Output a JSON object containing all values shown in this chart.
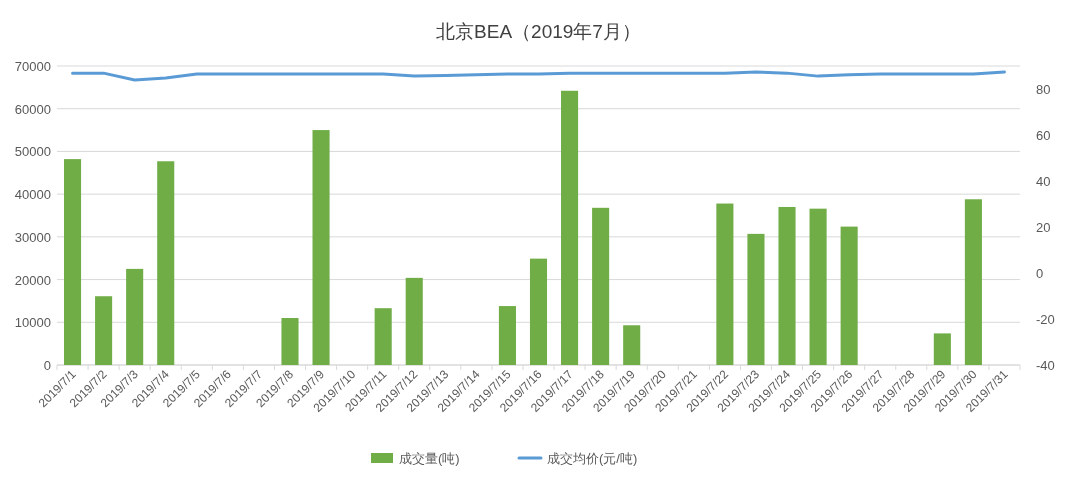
{
  "chart_data": {
    "type": "bar",
    "title": "北京BEA（2019年7月）",
    "categories": [
      "2019/7/1",
      "2019/7/2",
      "2019/7/3",
      "2019/7/4",
      "2019/7/5",
      "2019/7/6",
      "2019/7/7",
      "2019/7/8",
      "2019/7/9",
      "2019/7/10",
      "2019/7/11",
      "2019/7/12",
      "2019/7/13",
      "2019/7/14",
      "2019/7/15",
      "2019/7/16",
      "2019/7/17",
      "2019/7/18",
      "2019/7/19",
      "2019/7/20",
      "2019/7/21",
      "2019/7/22",
      "2019/7/23",
      "2019/7/24",
      "2019/7/25",
      "2019/7/26",
      "2019/7/27",
      "2019/7/28",
      "2019/7/29",
      "2019/7/30",
      "2019/7/31"
    ],
    "series": [
      {
        "name": "成交量(吨)",
        "color": "#70ad47",
        "values": [
          48200,
          16100,
          22500,
          47700,
          0,
          0,
          0,
          11000,
          55000,
          0,
          13300,
          20400,
          0,
          0,
          13800,
          24900,
          64200,
          36800,
          9300,
          0,
          0,
          37800,
          30700,
          37000,
          36600,
          32400,
          0,
          0,
          7400,
          38800,
          0
        ]
      },
      {
        "name": "成交均价(元/吨)",
        "type": "line",
        "axis": "y2",
        "color": "#5b9bd5",
        "values": [
          86.9,
          86.9,
          83.9,
          84.8,
          86.5,
          86.5,
          86.5,
          86.5,
          86.5,
          86.5,
          86.5,
          85.6,
          85.9,
          86.2,
          86.5,
          86.5,
          86.9,
          86.9,
          86.9,
          86.9,
          86.9,
          86.9,
          87.4,
          86.9,
          85.6,
          86.2,
          86.5,
          86.5,
          86.5,
          86.5,
          87.4
        ]
      }
    ],
    "ylim": [
      0,
      70000
    ],
    "yticks": [
      0,
      10000,
      20000,
      30000,
      40000,
      50000,
      60000,
      70000
    ],
    "y2lim": [
      -40,
      90
    ],
    "y2ticks": [
      -40,
      -20,
      0,
      20,
      40,
      60,
      80
    ],
    "grid": "y",
    "legend": "bottom",
    "marker": "none",
    "line_style": "solid"
  }
}
